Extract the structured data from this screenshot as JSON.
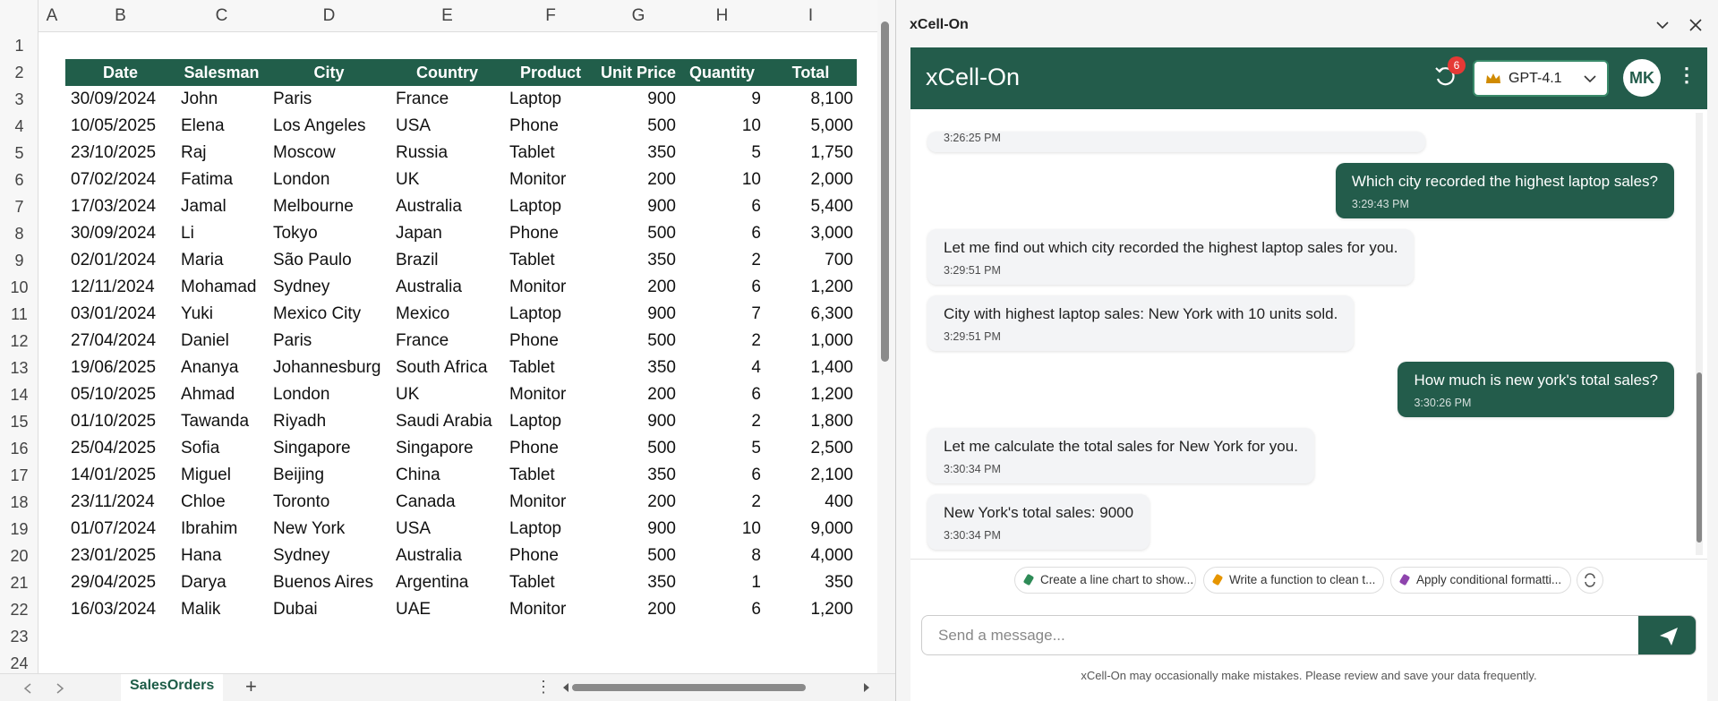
{
  "sheet": {
    "column_letters": [
      "A",
      "B",
      "C",
      "D",
      "E",
      "F",
      "G",
      "H",
      "I"
    ],
    "row_numbers": [
      1,
      2,
      3,
      4,
      5,
      6,
      7,
      8,
      9,
      10,
      11,
      12,
      13,
      14,
      15,
      16,
      17,
      18,
      19,
      20,
      21,
      22,
      23,
      24
    ],
    "header": [
      "Date",
      "Salesman",
      "City",
      "Country",
      "Product",
      "Unit Price",
      "Quantity",
      "Total"
    ],
    "rows": [
      [
        "30/09/2024",
        "John",
        "Paris",
        "France",
        "Laptop",
        900,
        9,
        "8,100"
      ],
      [
        "10/05/2025",
        "Elena",
        "Los Angeles",
        "USA",
        "Phone",
        500,
        10,
        "5,000"
      ],
      [
        "23/10/2025",
        "Raj",
        "Moscow",
        "Russia",
        "Tablet",
        350,
        5,
        "1,750"
      ],
      [
        "07/02/2024",
        "Fatima",
        "London",
        "UK",
        "Monitor",
        200,
        10,
        "2,000"
      ],
      [
        "17/03/2024",
        "Jamal",
        "Melbourne",
        "Australia",
        "Laptop",
        900,
        6,
        "5,400"
      ],
      [
        "30/09/2024",
        "Li",
        "Tokyo",
        "Japan",
        "Phone",
        500,
        6,
        "3,000"
      ],
      [
        "02/01/2024",
        "Maria",
        "São Paulo",
        "Brazil",
        "Tablet",
        350,
        2,
        700
      ],
      [
        "12/11/2024",
        "Mohamad",
        "Sydney",
        "Australia",
        "Monitor",
        200,
        6,
        "1,200"
      ],
      [
        "03/01/2024",
        "Yuki",
        "Mexico City",
        "Mexico",
        "Laptop",
        900,
        7,
        "6,300"
      ],
      [
        "27/04/2024",
        "Daniel",
        "Paris",
        "France",
        "Phone",
        500,
        2,
        "1,000"
      ],
      [
        "19/06/2025",
        "Ananya",
        "Johannesburg",
        "South Africa",
        "Tablet",
        350,
        4,
        "1,400"
      ],
      [
        "05/10/2025",
        "Ahmad",
        "London",
        "UK",
        "Monitor",
        200,
        6,
        "1,200"
      ],
      [
        "01/10/2025",
        "Tawanda",
        "Riyadh",
        "Saudi Arabia",
        "Laptop",
        900,
        2,
        "1,800"
      ],
      [
        "25/04/2025",
        "Sofia",
        "Singapore",
        "Singapore",
        "Phone",
        500,
        5,
        "2,500"
      ],
      [
        "14/01/2025",
        "Miguel",
        "Beijing",
        "China",
        "Tablet",
        350,
        6,
        "2,100"
      ],
      [
        "23/11/2024",
        "Chloe",
        "Toronto",
        "Canada",
        "Monitor",
        200,
        2,
        400
      ],
      [
        "01/07/2024",
        "Ibrahim",
        "New York",
        "USA",
        "Laptop",
        900,
        10,
        "9,000"
      ],
      [
        "23/01/2025",
        "Hana",
        "Sydney",
        "Australia",
        "Phone",
        500,
        8,
        "4,000"
      ],
      [
        "29/04/2025",
        "Darya",
        "Buenos Aires",
        "Argentina",
        "Tablet",
        350,
        1,
        350
      ],
      [
        "16/03/2024",
        "Malik",
        "Dubai",
        "UAE",
        "Monitor",
        200,
        6,
        "1,200"
      ]
    ],
    "tabs": [
      "SalesOrders"
    ]
  },
  "panel": {
    "window_title": "xCell-On",
    "title": "xCell-On",
    "history_badge": 6,
    "model": "GPT-4.1",
    "avatar": "MK",
    "partial_message_time": "3:26:25 PM",
    "messages": [
      {
        "role": "user",
        "text": "Which city recorded the highest laptop sales?",
        "time": "3:29:43 PM"
      },
      {
        "role": "assistant",
        "text": "Let me find out which city recorded the highest laptop sales for you.",
        "time": "3:29:51 PM"
      },
      {
        "role": "assistant",
        "text": "City with highest laptop sales: New York with 10 units sold.",
        "time": "3:29:51 PM"
      },
      {
        "role": "user",
        "text": "How much is new york's total sales?",
        "time": "3:30:26 PM"
      },
      {
        "role": "assistant",
        "text": "Let me calculate the total sales for New York for you.",
        "time": "3:30:34 PM"
      },
      {
        "role": "assistant",
        "text": "New York's total sales: 9000",
        "time": "3:30:34 PM"
      }
    ],
    "suggestions": [
      "Create a line chart to show...",
      "Write a function to clean t...",
      "Apply conditional formatti..."
    ],
    "input_placeholder": "Send a message...",
    "disclaimer": "xCell-On may occasionally make mistakes. Please review and save your data frequently."
  }
}
